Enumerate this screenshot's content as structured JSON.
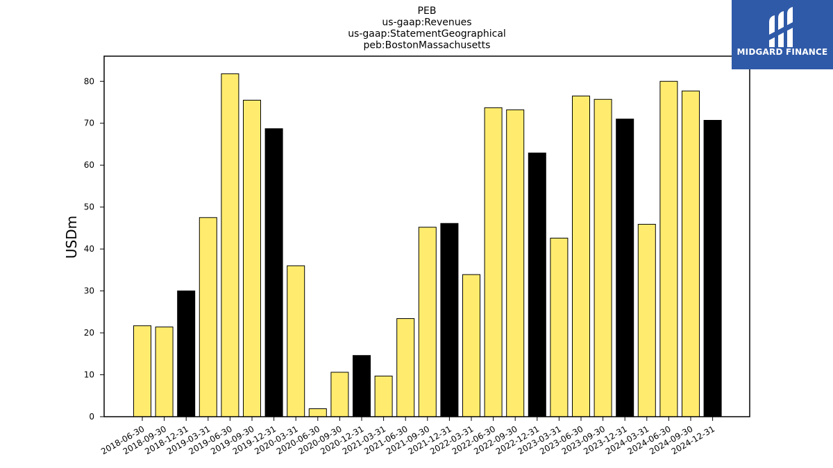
{
  "chart_data": {
    "type": "bar",
    "title_lines": [
      "PEB",
      "us-gaap:Revenues",
      "us-gaap:StatementGeographical",
      "peb:BostonMassachusetts"
    ],
    "xlabel": "",
    "ylabel": "USDm",
    "ylim": [
      0,
      86
    ],
    "yticks": [
      0,
      10,
      20,
      30,
      40,
      50,
      60,
      70,
      80
    ],
    "grid": false,
    "colors": {
      "quarter": "#ffec6e",
      "year_end": "#000000",
      "edge": "#000000"
    },
    "categories": [
      "2018-06-30",
      "2018-09-30",
      "2018-12-31",
      "2019-03-31",
      "2019-06-30",
      "2019-09-30",
      "2019-12-31",
      "2020-03-31",
      "2020-06-30",
      "2020-09-30",
      "2020-12-31",
      "2021-03-31",
      "2021-06-30",
      "2021-09-30",
      "2021-12-31",
      "2022-03-31",
      "2022-06-30",
      "2022-09-30",
      "2022-12-31",
      "2023-03-31",
      "2023-06-30",
      "2023-09-30",
      "2023-12-31",
      "2024-03-31",
      "2024-06-30",
      "2024-09-30",
      "2024-12-31"
    ],
    "values": [
      21.7,
      21.4,
      30.0,
      47.5,
      81.8,
      75.5,
      68.7,
      36.0,
      1.9,
      10.6,
      14.6,
      9.7,
      23.4,
      45.2,
      46.1,
      33.9,
      73.7,
      73.2,
      62.9,
      42.6,
      76.5,
      75.7,
      71.0,
      45.9,
      80.0,
      77.7,
      70.7
    ]
  },
  "logo": {
    "text": "MIDGARD FINANCE"
  }
}
